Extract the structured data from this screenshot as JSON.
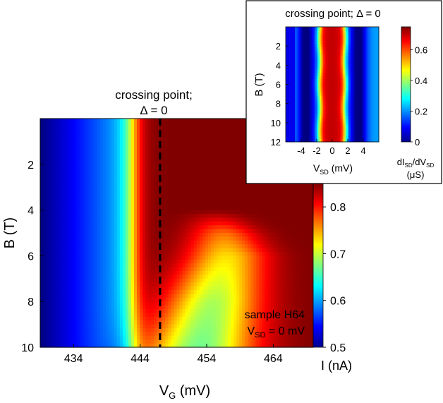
{
  "chart_data": [
    {
      "type": "heatmap",
      "id": "main",
      "title_lines": [
        "crossing point;",
        "Δ = 0"
      ],
      "xlabel_main": "V",
      "xlabel_sub": "G",
      "xlabel_unit": " (mV)",
      "ylabel": "B (T)",
      "xlim": [
        429,
        470
      ],
      "ylim": [
        0,
        10
      ],
      "x_ticks": [
        434,
        444,
        454,
        464
      ],
      "y_ticks": [
        2,
        4,
        6,
        8,
        10
      ],
      "crossing_x": 447,
      "annotation": {
        "line1": "sample H64",
        "line2_main": "V",
        "line2_sub": "SD",
        "line2_rest": " = 0 mV"
      },
      "colorbar": {
        "label": "I (nA)",
        "range": [
          0.5,
          0.85
        ],
        "ticks": [
          0.5,
          0.6,
          0.7,
          0.8
        ],
        "tick_labels": [
          "0.5",
          "0.6",
          "0.7",
          "0.8"
        ]
      },
      "profile": {
        "description": "current I(VG,B) in nA; rows of the map",
        "B_samples": [
          0,
          2,
          4,
          5,
          6,
          7,
          8,
          9,
          10
        ],
        "baseline_low": 0.5,
        "step_center_vg": 443,
        "step_width_vg": 1.8,
        "plateau": 0.85,
        "dip_center_vg": [
          451,
          452,
          455,
          456.5,
          457,
          456,
          455,
          454,
          453
        ],
        "dip_depth": [
          0.0,
          0.0,
          0.0,
          0.08,
          0.12,
          0.14,
          0.16,
          0.17,
          0.18
        ],
        "dip_width_vg": [
          4,
          4,
          4,
          5,
          6,
          6.5,
          7,
          7.5,
          8
        ]
      }
    },
    {
      "type": "heatmap",
      "id": "inset",
      "title": "crossing point; Δ = 0",
      "xlabel_main": "V",
      "xlabel_sub": "SD",
      "xlabel_unit": " (mV)",
      "ylabel": "B (T)",
      "xlim": [
        -6,
        6
      ],
      "ylim": [
        0,
        12
      ],
      "x_ticks": [
        -4,
        -2,
        0,
        2,
        4
      ],
      "y_ticks": [
        2,
        4,
        6,
        8,
        10,
        12
      ],
      "colorbar": {
        "label_top_main": "dI",
        "label_top_sub1": "SD",
        "label_top_mid": "/dV",
        "label_top_sub2": "SD",
        "label_bottom": "(μS)",
        "range": [
          0,
          0.75
        ],
        "ticks": [
          0,
          0.2,
          0.4,
          0.6
        ],
        "tick_labels": [
          "0",
          "0.2",
          "0.4",
          "0.6"
        ]
      },
      "profile": {
        "description": "dI/dV(VSD,B) in μS",
        "background": 0.15,
        "peak_center_vsd": 0.0,
        "peak_half_width_vsd": 1.6,
        "peak_value": 0.7,
        "side_dip_vsd": [
          -3.5,
          3.5
        ],
        "side_dip_value": 0.05
      }
    }
  ]
}
